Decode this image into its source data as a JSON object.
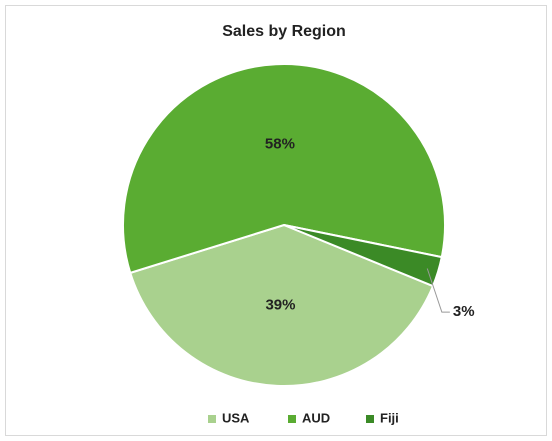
{
  "chart_data": {
    "type": "pie",
    "title": "Sales by Region",
    "categories": [
      "USA",
      "AUD",
      "Fiji"
    ],
    "values": [
      39,
      58,
      3
    ],
    "value_labels": [
      "39%",
      "58%",
      "3%"
    ],
    "colors": [
      "#a9d18e",
      "#5aac32",
      "#3b8a26"
    ],
    "legend": "bottom"
  }
}
